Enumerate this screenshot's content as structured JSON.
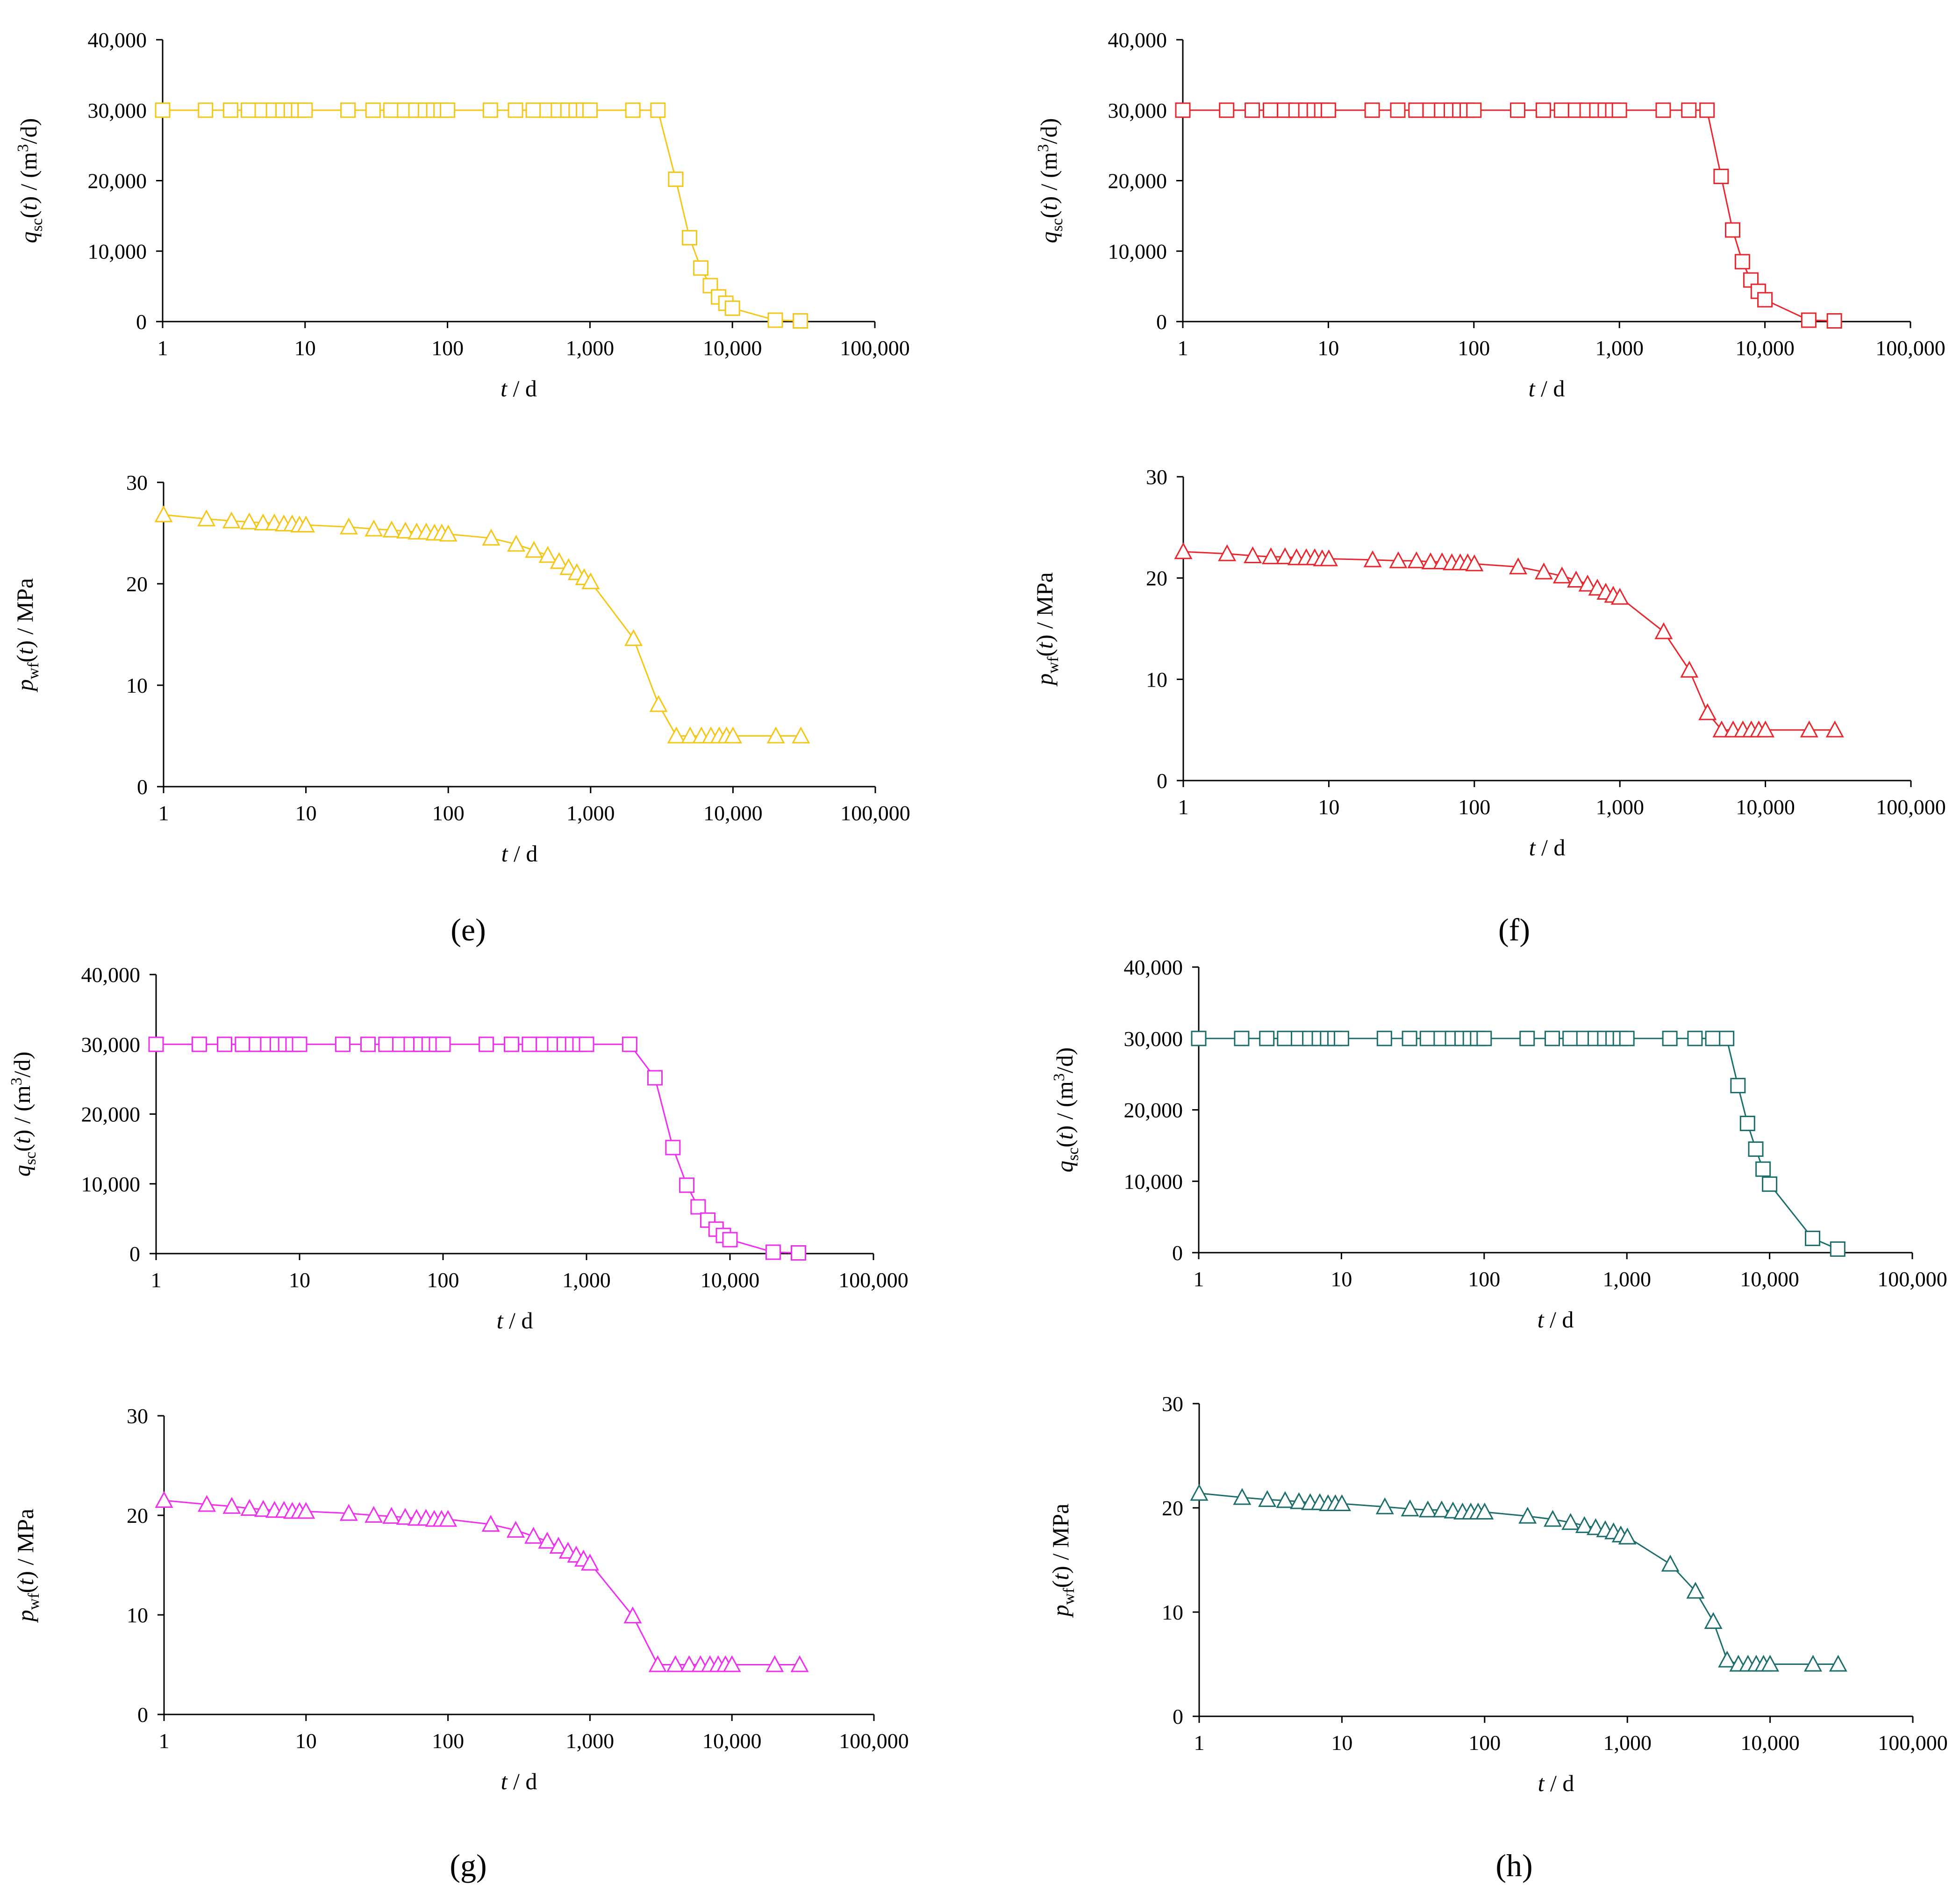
{
  "panel_labels": [
    "(e)",
    "(f)",
    "(g)",
    "(h)"
  ],
  "axis_text": {
    "x": [
      "t",
      " / d"
    ],
    "rate": [
      "q",
      "sc",
      "(",
      "t",
      ") / (m",
      "3",
      "/d)"
    ],
    "pressure": [
      "p",
      "wf",
      "(",
      "t",
      ") / MPa"
    ]
  },
  "chart_data": [
    {
      "id": "e-rate",
      "panel": "e",
      "type": "line",
      "marker": "square",
      "color": "#F5C518",
      "x_scale": "log",
      "xlim": [
        1,
        100000
      ],
      "x_ticks": [
        "1",
        "10",
        "100",
        "1,000",
        "10,000",
        "100,000"
      ],
      "ylim": [
        0,
        40000
      ],
      "y_ticks": [
        "0",
        "10,000",
        "20,000",
        "30,000",
        "40,000"
      ],
      "x": [
        1,
        2,
        3,
        4,
        5,
        6,
        7,
        8,
        9,
        10,
        20,
        30,
        40,
        50,
        60,
        70,
        80,
        90,
        100,
        200,
        300,
        400,
        500,
        600,
        700,
        800,
        900,
        1000,
        2000,
        3000,
        4000,
        5000,
        6000,
        7000,
        8000,
        9000,
        10000,
        20000,
        30000
      ],
      "y": [
        30000,
        30000,
        30000,
        30000,
        30000,
        30000,
        30000,
        30000,
        30000,
        30000,
        30000,
        30000,
        30000,
        30000,
        30000,
        30000,
        30000,
        30000,
        30000,
        30000,
        30000,
        30000,
        30000,
        30000,
        30000,
        30000,
        30000,
        30000,
        30000,
        30000,
        20200,
        11900,
        7600,
        5100,
        3500,
        2600,
        1900,
        200,
        100
      ]
    },
    {
      "id": "e-pressure",
      "panel": "e",
      "type": "line",
      "marker": "triangle",
      "color": "#F5C518",
      "x_scale": "log",
      "xlim": [
        1,
        100000
      ],
      "x_ticks": [
        "1",
        "10",
        "100",
        "1,000",
        "10,000",
        "100,000"
      ],
      "ylim": [
        0,
        30
      ],
      "y_ticks": [
        "0",
        "10",
        "20",
        "30"
      ],
      "x": [
        1,
        2,
        3,
        4,
        5,
        6,
        7,
        8,
        9,
        10,
        20,
        30,
        40,
        50,
        60,
        70,
        80,
        90,
        100,
        200,
        300,
        400,
        500,
        600,
        700,
        800,
        900,
        1000,
        2000,
        3000,
        4000,
        5000,
        6000,
        7000,
        8000,
        9000,
        10000,
        20000,
        30000
      ],
      "y": [
        26.8,
        26.4,
        26.2,
        26.1,
        26.0,
        26.0,
        25.9,
        25.9,
        25.8,
        25.8,
        25.6,
        25.4,
        25.3,
        25.2,
        25.1,
        25.1,
        25.0,
        25.0,
        24.9,
        24.5,
        23.9,
        23.3,
        22.8,
        22.2,
        21.6,
        21.1,
        20.6,
        20.2,
        14.6,
        8.1,
        5.0,
        5.0,
        5.0,
        5.0,
        5.0,
        5.0,
        5.0,
        5.0,
        5.0
      ]
    },
    {
      "id": "f-rate",
      "panel": "f",
      "type": "line",
      "marker": "square",
      "color": "#E8262D",
      "x_scale": "log",
      "xlim": [
        1,
        100000
      ],
      "x_ticks": [
        "1",
        "10",
        "100",
        "1,000",
        "10,000",
        "100,000"
      ],
      "ylim": [
        0,
        40000
      ],
      "y_ticks": [
        "0",
        "10,000",
        "20,000",
        "30,000",
        "40,000"
      ],
      "x": [
        1,
        2,
        3,
        4,
        5,
        6,
        7,
        8,
        9,
        10,
        20,
        30,
        40,
        50,
        60,
        70,
        80,
        90,
        100,
        200,
        300,
        400,
        500,
        600,
        700,
        800,
        900,
        1000,
        2000,
        3000,
        4000,
        5000,
        6000,
        7000,
        8000,
        9000,
        10000,
        20000,
        30000
      ],
      "y": [
        30000,
        30000,
        30000,
        30000,
        30000,
        30000,
        30000,
        30000,
        30000,
        30000,
        30000,
        30000,
        30000,
        30000,
        30000,
        30000,
        30000,
        30000,
        30000,
        30000,
        30000,
        30000,
        30000,
        30000,
        30000,
        30000,
        30000,
        30000,
        30000,
        30000,
        30000,
        20600,
        13000,
        8500,
        5900,
        4300,
        3100,
        200,
        100
      ]
    },
    {
      "id": "f-pressure",
      "panel": "f",
      "type": "line",
      "marker": "triangle",
      "color": "#E8262D",
      "x_scale": "log",
      "xlim": [
        1,
        100000
      ],
      "x_ticks": [
        "1",
        "10",
        "100",
        "1,000",
        "10,000",
        "100,000"
      ],
      "ylim": [
        0,
        30
      ],
      "y_ticks": [
        "0",
        "10",
        "20",
        "30"
      ],
      "x": [
        1,
        2,
        3,
        4,
        5,
        6,
        7,
        8,
        9,
        10,
        20,
        30,
        40,
        50,
        60,
        70,
        80,
        90,
        100,
        200,
        300,
        400,
        500,
        600,
        700,
        800,
        900,
        1000,
        2000,
        3000,
        4000,
        5000,
        6000,
        7000,
        8000,
        9000,
        10000,
        20000,
        30000
      ],
      "y": [
        22.6,
        22.4,
        22.2,
        22.1,
        22.1,
        22.0,
        22.0,
        22.0,
        21.9,
        21.9,
        21.8,
        21.7,
        21.7,
        21.6,
        21.6,
        21.5,
        21.5,
        21.5,
        21.4,
        21.1,
        20.6,
        20.2,
        19.8,
        19.4,
        19.0,
        18.6,
        18.3,
        18.1,
        14.7,
        10.9,
        6.7,
        5.0,
        5.0,
        5.0,
        5.0,
        5.0,
        5.0,
        5.0,
        5.0
      ]
    },
    {
      "id": "g-rate",
      "panel": "g",
      "type": "line",
      "marker": "square",
      "color": "#F02EF0",
      "x_scale": "log",
      "xlim": [
        1,
        100000
      ],
      "x_ticks": [
        "1",
        "10",
        "100",
        "1,000",
        "10,000",
        "100,000"
      ],
      "ylim": [
        0,
        40000
      ],
      "y_ticks": [
        "0",
        "10,000",
        "20,000",
        "30,000",
        "40,000"
      ],
      "x": [
        1,
        2,
        3,
        4,
        5,
        6,
        7,
        8,
        9,
        10,
        20,
        30,
        40,
        50,
        60,
        70,
        80,
        90,
        100,
        200,
        300,
        400,
        500,
        600,
        700,
        800,
        900,
        1000,
        2000,
        3000,
        4000,
        5000,
        6000,
        7000,
        8000,
        9000,
        10000,
        20000,
        30000
      ],
      "y": [
        30000,
        30000,
        30000,
        30000,
        30000,
        30000,
        30000,
        30000,
        30000,
        30000,
        30000,
        30000,
        30000,
        30000,
        30000,
        30000,
        30000,
        30000,
        30000,
        30000,
        30000,
        30000,
        30000,
        30000,
        30000,
        30000,
        30000,
        30000,
        30000,
        25200,
        15200,
        9800,
        6700,
        4800,
        3500,
        2600,
        2000,
        200,
        100
      ]
    },
    {
      "id": "g-pressure",
      "panel": "g",
      "type": "line",
      "marker": "triangle",
      "color": "#F02EF0",
      "x_scale": "log",
      "xlim": [
        1,
        100000
      ],
      "x_ticks": [
        "1",
        "10",
        "100",
        "1,000",
        "10,000",
        "100,000"
      ],
      "ylim": [
        0,
        30
      ],
      "y_ticks": [
        "0",
        "10",
        "20",
        "30"
      ],
      "x": [
        1,
        2,
        3,
        4,
        5,
        6,
        7,
        8,
        9,
        10,
        20,
        30,
        40,
        50,
        60,
        70,
        80,
        90,
        100,
        200,
        300,
        400,
        500,
        600,
        700,
        800,
        900,
        1000,
        2000,
        3000,
        4000,
        5000,
        6000,
        7000,
        8000,
        9000,
        10000,
        20000,
        30000
      ],
      "y": [
        21.5,
        21.1,
        20.9,
        20.7,
        20.6,
        20.5,
        20.5,
        20.4,
        20.4,
        20.4,
        20.2,
        20.0,
        19.9,
        19.8,
        19.7,
        19.7,
        19.6,
        19.6,
        19.6,
        19.1,
        18.5,
        17.9,
        17.4,
        16.9,
        16.4,
        16.0,
        15.6,
        15.2,
        9.9,
        5.0,
        5.0,
        5.0,
        5.0,
        5.0,
        5.0,
        5.0,
        5.0,
        5.0,
        5.0
      ]
    },
    {
      "id": "h-rate",
      "panel": "h",
      "type": "line",
      "marker": "square",
      "color": "#1B6E6A",
      "x_scale": "log",
      "xlim": [
        1,
        100000
      ],
      "x_ticks": [
        "1",
        "10",
        "100",
        "1,000",
        "10,000",
        "100,000"
      ],
      "ylim": [
        0,
        40000
      ],
      "y_ticks": [
        "0",
        "10,000",
        "20,000",
        "30,000",
        "40,000"
      ],
      "x": [
        1,
        2,
        3,
        4,
        5,
        6,
        7,
        8,
        9,
        10,
        20,
        30,
        40,
        50,
        60,
        70,
        80,
        90,
        100,
        200,
        300,
        400,
        500,
        600,
        700,
        800,
        900,
        1000,
        2000,
        3000,
        4000,
        5000,
        6000,
        7000,
        8000,
        9000,
        10000,
        20000,
        30000
      ],
      "y": [
        30000,
        30000,
        30000,
        30000,
        30000,
        30000,
        30000,
        30000,
        30000,
        30000,
        30000,
        30000,
        30000,
        30000,
        30000,
        30000,
        30000,
        30000,
        30000,
        30000,
        30000,
        30000,
        30000,
        30000,
        30000,
        30000,
        30000,
        30000,
        30000,
        30000,
        30000,
        30000,
        23400,
        18100,
        14500,
        11700,
        9600,
        2000,
        500
      ]
    },
    {
      "id": "h-pressure",
      "panel": "h",
      "type": "line",
      "marker": "triangle",
      "color": "#1B6E6A",
      "x_scale": "log",
      "xlim": [
        1,
        100000
      ],
      "x_ticks": [
        "1",
        "10",
        "100",
        "1,000",
        "10,000",
        "100,000"
      ],
      "ylim": [
        0,
        30
      ],
      "y_ticks": [
        "0",
        "10",
        "20",
        "30"
      ],
      "x": [
        1,
        2,
        3,
        4,
        5,
        6,
        7,
        8,
        9,
        10,
        20,
        30,
        40,
        50,
        60,
        70,
        80,
        90,
        100,
        200,
        300,
        400,
        500,
        600,
        700,
        800,
        900,
        1000,
        2000,
        3000,
        4000,
        5000,
        6000,
        7000,
        8000,
        9000,
        10000,
        20000,
        30000
      ],
      "y": [
        21.4,
        21.0,
        20.8,
        20.7,
        20.6,
        20.5,
        20.5,
        20.4,
        20.4,
        20.4,
        20.1,
        19.9,
        19.8,
        19.8,
        19.7,
        19.6,
        19.6,
        19.6,
        19.6,
        19.2,
        18.9,
        18.6,
        18.3,
        18.1,
        17.9,
        17.7,
        17.4,
        17.2,
        14.6,
        12.0,
        9.1,
        5.4,
        5.0,
        5.0,
        5.0,
        5.0,
        5.0,
        5.0,
        5.0
      ]
    }
  ]
}
